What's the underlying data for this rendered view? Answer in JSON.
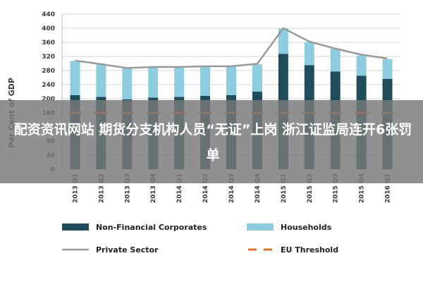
{
  "chart_data": {
    "type": "bar",
    "ylabel": "Per Cent of GDP",
    "ylim": [
      0,
      440
    ],
    "yticks": [
      0,
      40,
      80,
      120,
      160,
      200,
      240,
      280,
      320,
      360,
      400,
      440
    ],
    "categories": [
      "2013 Q1",
      "2013 Q2",
      "2013 Q3",
      "2013 Q4",
      "2014 Q1",
      "2014 Q2",
      "2014 Q3",
      "2014 Q4",
      "2015 Q1",
      "2015 Q2",
      "2015 Q3",
      "2015 Q4",
      "2016 Q1"
    ],
    "series": [
      {
        "name": "Non-Financial Corporates",
        "type": "stacked-bar",
        "color": "#1f4e5a",
        "values": [
          210,
          205,
          198,
          203,
          205,
          208,
          210,
          220,
          327,
          295,
          277,
          265,
          256
        ]
      },
      {
        "name": "Households",
        "type": "stacked-bar",
        "color": "#8ecde0",
        "values": [
          97,
          92,
          88,
          87,
          85,
          82,
          81,
          78,
          72,
          66,
          64,
          58,
          56
        ]
      },
      {
        "name": "Private Sector",
        "type": "line",
        "color": "#9a9a9a",
        "values": [
          308,
          298,
          287,
          290,
          290,
          292,
          292,
          299,
          400,
          362,
          342,
          325,
          314
        ]
      },
      {
        "name": "EU Threshold",
        "type": "dashed-line",
        "color": "#e0702f",
        "values": [
          160,
          160,
          160,
          160,
          160,
          160,
          160,
          160,
          160,
          160,
          160,
          160,
          160
        ]
      }
    ],
    "legend_position": "bottom",
    "grid": true
  },
  "overlay": {
    "text": "配资资讯网站 期货分支机构人员“无证”上岗 浙江证监局连开6张罚单"
  }
}
